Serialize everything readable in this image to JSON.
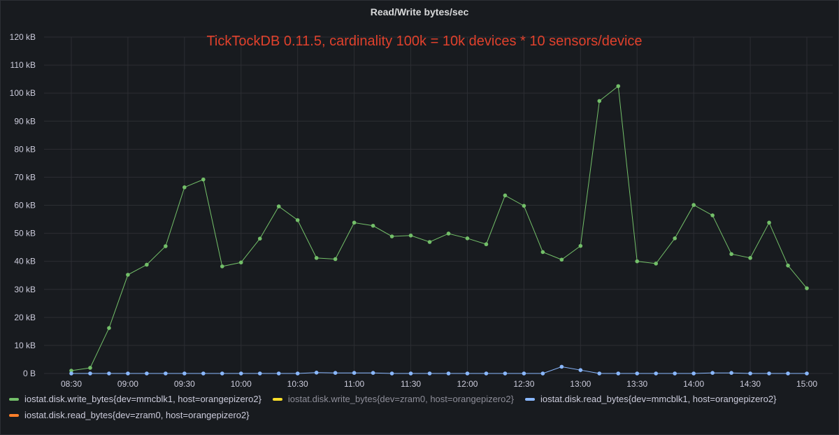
{
  "panel": {
    "title": "Read/Write bytes/sec"
  },
  "annotation": {
    "text": "TickTockDB 0.11.5, cardinality 100k = 10k devices * 10 sensors/device",
    "color": "#e0412c"
  },
  "chart_data": {
    "type": "line",
    "title": "Read/Write bytes/sec",
    "xlabel": "",
    "ylabel": "",
    "x_ticks": [
      "08:30",
      "09:00",
      "09:30",
      "10:00",
      "10:30",
      "11:00",
      "11:30",
      "12:00",
      "12:30",
      "13:00",
      "13:30",
      "14:00",
      "14:30",
      "15:00"
    ],
    "y_ticks": [
      "0 B",
      "10 kB",
      "20 kB",
      "30 kB",
      "40 kB",
      "50 kB",
      "60 kB",
      "70 kB",
      "80 kB",
      "90 kB",
      "100 kB",
      "110 kB",
      "120 kB"
    ],
    "ylim_kB": [
      0,
      120
    ],
    "xlim": [
      "08:30",
      "15:00"
    ],
    "grid": true,
    "legend_position": "bottom",
    "x": [
      "08:30",
      "08:40",
      "08:50",
      "09:00",
      "09:10",
      "09:20",
      "09:30",
      "09:40",
      "09:50",
      "10:00",
      "10:10",
      "10:20",
      "10:30",
      "10:40",
      "10:50",
      "11:00",
      "11:10",
      "11:20",
      "11:30",
      "11:40",
      "11:50",
      "12:00",
      "12:10",
      "12:20",
      "12:30",
      "12:40",
      "12:50",
      "13:00",
      "13:10",
      "13:20",
      "13:30",
      "13:40",
      "13:50",
      "14:00",
      "14:10",
      "14:20",
      "14:30",
      "14:40",
      "14:50",
      "15:00"
    ],
    "series": [
      {
        "name": "iostat.disk.write_bytes{dev=mmcblk1, host=orangepizero2}",
        "color": "#73bf69",
        "values_kB": [
          1.0,
          2.0,
          16.2,
          35.2,
          38.8,
          45.4,
          66.4,
          69.2,
          38.2,
          39.6,
          48.1,
          59.6,
          54.7,
          41.2,
          40.8,
          53.8,
          52.7,
          48.9,
          49.2,
          46.9,
          49.9,
          48.2,
          46.1,
          63.5,
          59.8,
          43.3,
          40.6,
          45.5,
          97.2,
          102.5,
          40.0,
          39.2,
          48.2,
          60.1,
          56.4,
          42.6,
          41.2,
          53.8,
          38.5,
          30.4
        ]
      },
      {
        "name": "iostat.disk.write_bytes{dev=zram0, host=orangepizero2}",
        "color": "#fade2a",
        "hidden": true,
        "values_kB": []
      },
      {
        "name": "iostat.disk.read_bytes{dev=mmcblk1, host=orangepizero2}",
        "color": "#8ab8ff",
        "values_kB": [
          0,
          0,
          0,
          0,
          0,
          0,
          0,
          0,
          0,
          0,
          0,
          0,
          0,
          0.3,
          0.2,
          0.2,
          0.2,
          0,
          0,
          0,
          0,
          0,
          0,
          0,
          0,
          0,
          2.4,
          1.2,
          0,
          0,
          0,
          0,
          0,
          0,
          0.2,
          0.2,
          0,
          0,
          0,
          0
        ]
      },
      {
        "name": "iostat.disk.read_bytes{dev=zram0, host=orangepizero2}",
        "color": "#ff7f2a",
        "hidden": true,
        "values_kB": []
      }
    ]
  },
  "colors": {
    "grid": "#2c2e33",
    "axis_text": "#ccccdc",
    "background": "#181b1f"
  }
}
